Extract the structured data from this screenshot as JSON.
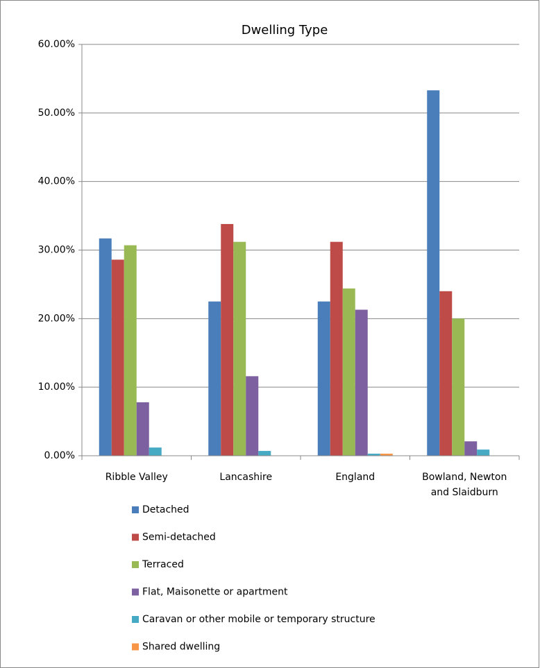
{
  "chart_data": {
    "type": "bar",
    "title": "Dwelling Type",
    "categories": [
      "Ribble Valley",
      "Lancashire",
      "England",
      "Bowland, Newton and Slaidburn"
    ],
    "series": [
      {
        "name": "Detached",
        "color": "#4a7ebb",
        "values": [
          31.7,
          22.5,
          22.5,
          53.3
        ]
      },
      {
        "name": "Semi-detached",
        "color": "#be4b48",
        "values": [
          28.6,
          33.8,
          31.2,
          24.0
        ]
      },
      {
        "name": "Terraced",
        "color": "#98b954",
        "values": [
          30.7,
          31.2,
          24.4,
          20.0
        ]
      },
      {
        "name": "Flat, Maisonette or apartment",
        "color": "#7d60a0",
        "values": [
          7.8,
          11.6,
          21.3,
          2.1
        ]
      },
      {
        "name": "Caravan or other mobile or temporary structure",
        "color": "#46aac5",
        "values": [
          1.2,
          0.7,
          0.3,
          0.9
        ]
      },
      {
        "name": "Shared dwelling",
        "color": "#f79646",
        "values": [
          0,
          0,
          0.3,
          0
        ]
      }
    ],
    "ylim": [
      0,
      60
    ],
    "yticks": [
      {
        "value": 0,
        "label": "0.00%"
      },
      {
        "value": 10,
        "label": "10.00%"
      },
      {
        "value": 20,
        "label": "20.00%"
      },
      {
        "value": 30,
        "label": "30.00%"
      },
      {
        "value": 40,
        "label": "40.00%"
      },
      {
        "value": 50,
        "label": "50.00%"
      },
      {
        "value": 60,
        "label": "60.00%"
      }
    ],
    "grid": true
  }
}
